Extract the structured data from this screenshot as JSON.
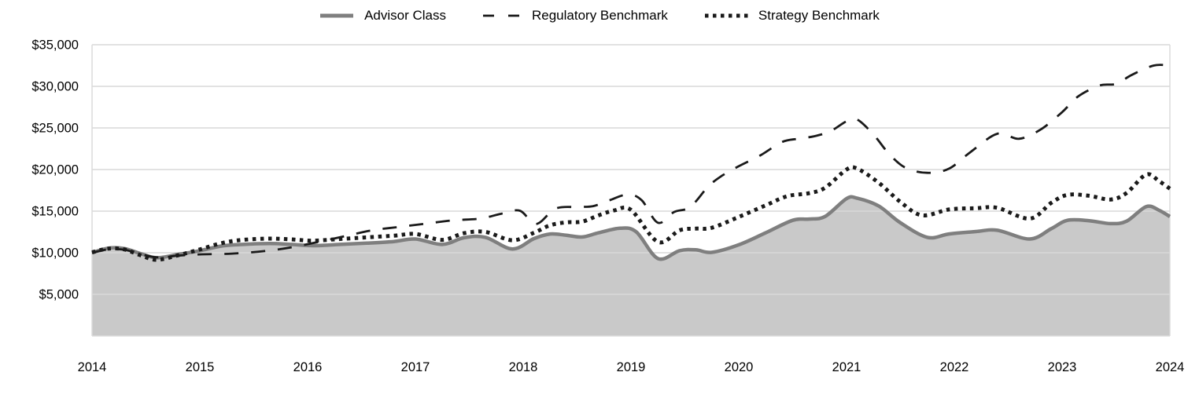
{
  "legend": {
    "items": [
      {
        "label": "Advisor Class",
        "style": "solid",
        "color": "#7f7f7f"
      },
      {
        "label": "Regulatory Benchmark",
        "style": "dashed",
        "color": "#1a1a1a"
      },
      {
        "label": "Strategy Benchmark",
        "style": "dotted",
        "color": "#1a1a1a"
      }
    ]
  },
  "chart_data": {
    "type": "line",
    "xlabel": "",
    "ylabel": "",
    "grid": true,
    "legend_position": "top-center",
    "x_axis": {
      "min": 2014,
      "max": 2024,
      "ticks": [
        2014,
        2015,
        2016,
        2017,
        2018,
        2019,
        2020,
        2021,
        2022,
        2023,
        2024
      ]
    },
    "y_axis": {
      "min": 0,
      "max": 35000,
      "ticks": [
        {
          "value": 5000,
          "label": "$5,000"
        },
        {
          "value": 10000,
          "label": "$10,000"
        },
        {
          "value": 15000,
          "label": "$15,000"
        },
        {
          "value": 20000,
          "label": "$20,000"
        },
        {
          "value": 25000,
          "label": "$25,000"
        },
        {
          "value": 30000,
          "label": "$30,000"
        },
        {
          "value": 35000,
          "label": "$35,000"
        }
      ]
    },
    "colors": {
      "gridline": "#d9d9d9",
      "area_fill": "#c9c9c9",
      "advisor_line": "#7f7f7f",
      "benchmark_line": "#1a1a1a"
    },
    "series": [
      {
        "name": "Advisor Class",
        "style": "solid",
        "area": true,
        "color": "#7f7f7f",
        "fill": "#c9c9c9",
        "points": [
          [
            2014.0,
            10000
          ],
          [
            2014.15,
            10550
          ],
          [
            2014.3,
            10500
          ],
          [
            2014.45,
            9900
          ],
          [
            2014.6,
            9400
          ],
          [
            2014.8,
            9800
          ],
          [
            2015.0,
            10250
          ],
          [
            2015.2,
            10800
          ],
          [
            2015.4,
            11000
          ],
          [
            2015.65,
            11100
          ],
          [
            2015.85,
            11000
          ],
          [
            2016.05,
            10850
          ],
          [
            2016.3,
            11000
          ],
          [
            2016.55,
            11150
          ],
          [
            2016.8,
            11350
          ],
          [
            2017.0,
            11650
          ],
          [
            2017.25,
            11000
          ],
          [
            2017.45,
            11800
          ],
          [
            2017.65,
            11850
          ],
          [
            2017.9,
            10450
          ],
          [
            2018.1,
            11700
          ],
          [
            2018.25,
            12250
          ],
          [
            2018.4,
            12100
          ],
          [
            2018.55,
            11900
          ],
          [
            2018.7,
            12400
          ],
          [
            2018.9,
            12950
          ],
          [
            2019.05,
            12500
          ],
          [
            2019.25,
            9300
          ],
          [
            2019.45,
            10250
          ],
          [
            2019.6,
            10350
          ],
          [
            2019.75,
            10050
          ],
          [
            2020.0,
            10950
          ],
          [
            2020.25,
            12400
          ],
          [
            2020.5,
            13900
          ],
          [
            2020.65,
            14050
          ],
          [
            2020.8,
            14350
          ],
          [
            2021.0,
            16500
          ],
          [
            2021.1,
            16550
          ],
          [
            2021.3,
            15600
          ],
          [
            2021.5,
            13600
          ],
          [
            2021.75,
            11850
          ],
          [
            2021.95,
            12250
          ],
          [
            2022.2,
            12550
          ],
          [
            2022.4,
            12700
          ],
          [
            2022.7,
            11650
          ],
          [
            2022.9,
            12900
          ],
          [
            2023.05,
            13900
          ],
          [
            2023.25,
            13850
          ],
          [
            2023.45,
            13500
          ],
          [
            2023.6,
            13800
          ],
          [
            2023.78,
            15550
          ],
          [
            2023.9,
            15100
          ],
          [
            2024.0,
            14350
          ]
        ]
      },
      {
        "name": "Regulatory Benchmark",
        "style": "dashed",
        "area": false,
        "color": "#1a1a1a",
        "points": [
          [
            2014.0,
            10000
          ],
          [
            2014.15,
            10400
          ],
          [
            2014.3,
            10350
          ],
          [
            2014.45,
            9850
          ],
          [
            2014.6,
            9450
          ],
          [
            2014.8,
            9650
          ],
          [
            2015.0,
            9800
          ],
          [
            2015.3,
            9900
          ],
          [
            2015.6,
            10200
          ],
          [
            2015.85,
            10650
          ],
          [
            2016.1,
            11300
          ],
          [
            2016.35,
            12000
          ],
          [
            2016.6,
            12700
          ],
          [
            2016.85,
            13100
          ],
          [
            2017.1,
            13500
          ],
          [
            2017.35,
            13900
          ],
          [
            2017.6,
            14100
          ],
          [
            2017.8,
            14700
          ],
          [
            2017.97,
            15050
          ],
          [
            2018.12,
            13450
          ],
          [
            2018.3,
            15300
          ],
          [
            2018.5,
            15500
          ],
          [
            2018.65,
            15600
          ],
          [
            2018.8,
            16300
          ],
          [
            2018.97,
            17000
          ],
          [
            2019.1,
            16300
          ],
          [
            2019.25,
            13600
          ],
          [
            2019.4,
            14900
          ],
          [
            2019.55,
            15500
          ],
          [
            2019.72,
            18000
          ],
          [
            2019.85,
            19300
          ],
          [
            2020.0,
            20400
          ],
          [
            2020.2,
            21700
          ],
          [
            2020.4,
            23300
          ],
          [
            2020.55,
            23700
          ],
          [
            2020.7,
            24000
          ],
          [
            2020.85,
            24600
          ],
          [
            2021.0,
            25800
          ],
          [
            2021.1,
            26000
          ],
          [
            2021.25,
            24200
          ],
          [
            2021.4,
            21800
          ],
          [
            2021.55,
            20200
          ],
          [
            2021.75,
            19600
          ],
          [
            2021.95,
            20100
          ],
          [
            2022.15,
            22100
          ],
          [
            2022.4,
            24300
          ],
          [
            2022.6,
            23700
          ],
          [
            2022.8,
            24800
          ],
          [
            2023.0,
            26900
          ],
          [
            2023.15,
            28800
          ],
          [
            2023.35,
            30100
          ],
          [
            2023.5,
            30300
          ],
          [
            2023.65,
            31400
          ],
          [
            2023.85,
            32500
          ],
          [
            2024.0,
            32500
          ]
        ]
      },
      {
        "name": "Strategy Benchmark",
        "style": "dotted",
        "area": false,
        "color": "#1a1a1a",
        "points": [
          [
            2014.0,
            10050
          ],
          [
            2014.15,
            10500
          ],
          [
            2014.3,
            10400
          ],
          [
            2014.45,
            9700
          ],
          [
            2014.6,
            9150
          ],
          [
            2014.8,
            9700
          ],
          [
            2015.0,
            10400
          ],
          [
            2015.2,
            11150
          ],
          [
            2015.4,
            11550
          ],
          [
            2015.65,
            11700
          ],
          [
            2015.85,
            11600
          ],
          [
            2016.05,
            11450
          ],
          [
            2016.3,
            11650
          ],
          [
            2016.55,
            11850
          ],
          [
            2016.8,
            12050
          ],
          [
            2017.0,
            12250
          ],
          [
            2017.25,
            11550
          ],
          [
            2017.45,
            12350
          ],
          [
            2017.65,
            12500
          ],
          [
            2017.9,
            11500
          ],
          [
            2018.1,
            12400
          ],
          [
            2018.25,
            13300
          ],
          [
            2018.4,
            13650
          ],
          [
            2018.55,
            13750
          ],
          [
            2018.7,
            14500
          ],
          [
            2018.85,
            15100
          ],
          [
            2019.0,
            15150
          ],
          [
            2019.25,
            11300
          ],
          [
            2019.45,
            12700
          ],
          [
            2019.6,
            12900
          ],
          [
            2019.75,
            13000
          ],
          [
            2020.0,
            14300
          ],
          [
            2020.25,
            15700
          ],
          [
            2020.45,
            16800
          ],
          [
            2020.65,
            17150
          ],
          [
            2020.8,
            17800
          ],
          [
            2021.0,
            20000
          ],
          [
            2021.1,
            20100
          ],
          [
            2021.3,
            18400
          ],
          [
            2021.5,
            16100
          ],
          [
            2021.7,
            14500
          ],
          [
            2021.95,
            15200
          ],
          [
            2022.2,
            15350
          ],
          [
            2022.4,
            15400
          ],
          [
            2022.7,
            14100
          ],
          [
            2022.9,
            16000
          ],
          [
            2023.05,
            16950
          ],
          [
            2023.25,
            16850
          ],
          [
            2023.45,
            16400
          ],
          [
            2023.6,
            17200
          ],
          [
            2023.78,
            19400
          ],
          [
            2023.9,
            18600
          ],
          [
            2024.0,
            17700
          ]
        ]
      }
    ]
  }
}
